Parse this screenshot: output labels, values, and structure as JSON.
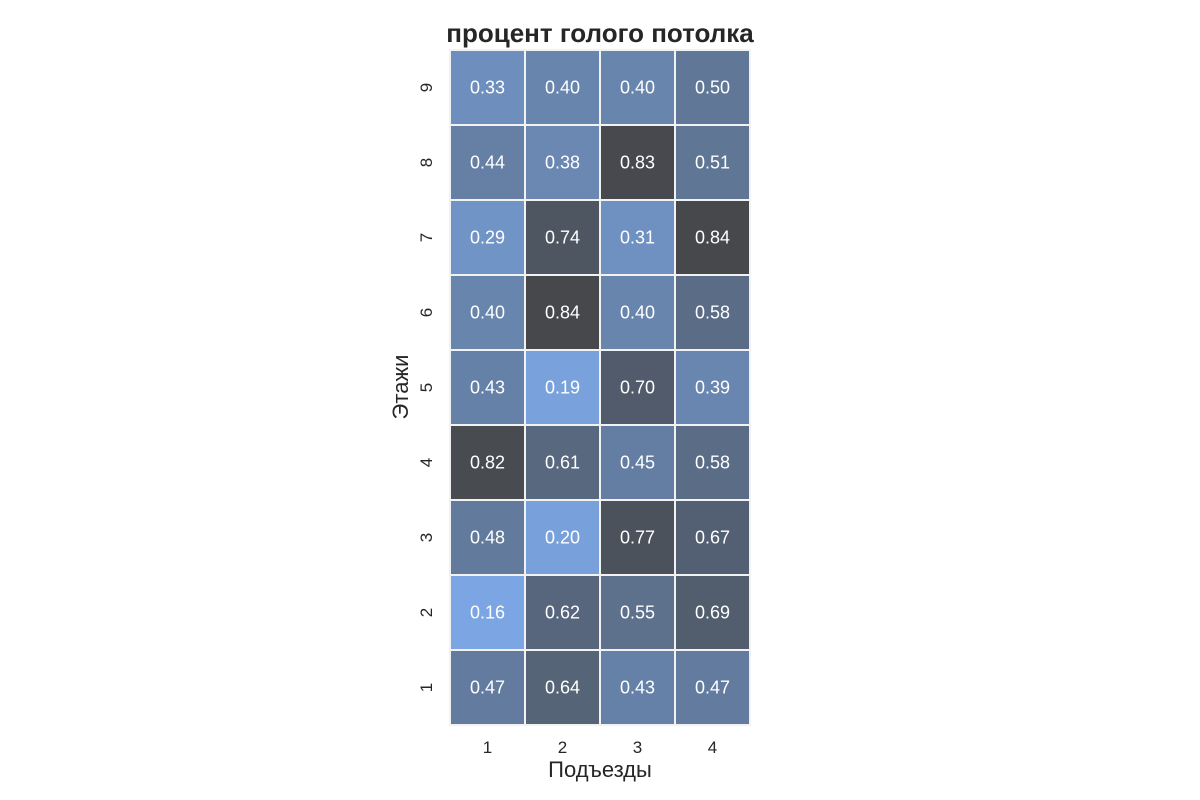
{
  "chart_data": {
    "type": "heatmap",
    "title": "процент голого потолка",
    "xlabel": "Подъезды",
    "ylabel": "Этажи",
    "x_categories": [
      "1",
      "2",
      "3",
      "4"
    ],
    "y_categories": [
      "9",
      "8",
      "7",
      "6",
      "5",
      "4",
      "3",
      "2",
      "1"
    ],
    "values": [
      [
        0.33,
        0.4,
        0.4,
        0.5
      ],
      [
        0.44,
        0.38,
        0.83,
        0.51
      ],
      [
        0.29,
        0.74,
        0.31,
        0.84
      ],
      [
        0.4,
        0.84,
        0.4,
        0.58
      ],
      [
        0.43,
        0.19,
        0.7,
        0.39
      ],
      [
        0.82,
        0.61,
        0.45,
        0.58
      ],
      [
        0.48,
        0.2,
        0.77,
        0.67
      ],
      [
        0.16,
        0.62,
        0.55,
        0.69
      ],
      [
        0.47,
        0.64,
        0.43,
        0.47
      ]
    ],
    "value_format": "0.00",
    "colorbar": false,
    "colors": {
      "low": "#7BA6E3",
      "high": "#46484C",
      "cell_text": "#ffffff",
      "grid_line": "#f2f2f2"
    }
  }
}
